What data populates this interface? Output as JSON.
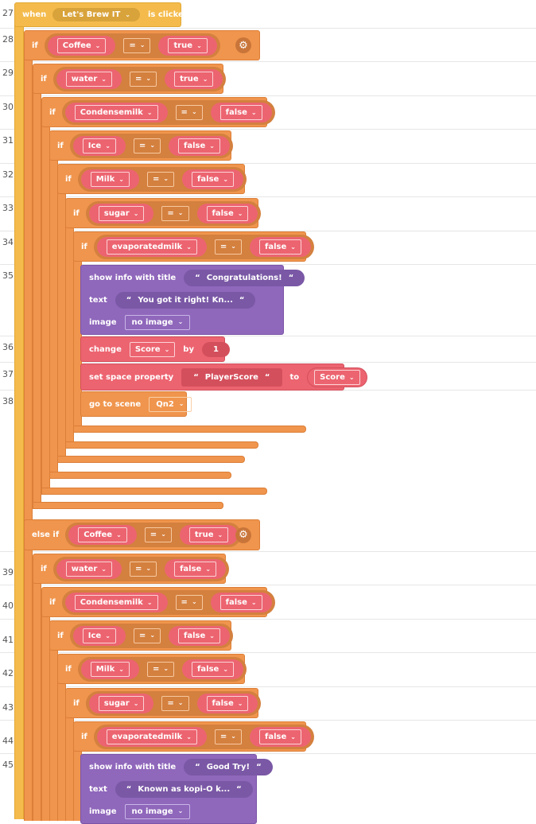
{
  "line_numbers": [
    "27",
    "28",
    "29",
    "30",
    "31",
    "32",
    "33",
    "34",
    "35",
    "36",
    "37",
    "38",
    "39",
    "40",
    "41",
    "42",
    "43",
    "44",
    "45"
  ],
  "event": {
    "when": "when",
    "target": "Let's Brew IT",
    "clicked": "is clicked"
  },
  "icons": {
    "gear": "gear-icon",
    "chevron": "chevron-down-icon"
  },
  "colors": {
    "event": "#f4bb4c",
    "control": "#f0954d",
    "condition": "#ec6470",
    "info": "#8f67bb"
  },
  "branches": [
    {
      "keyword": "if",
      "conditions": [
        {
          "keyword": "if",
          "var": "Coffee",
          "op": "=",
          "value": "true"
        },
        {
          "keyword": "if",
          "var": "water",
          "op": "=",
          "value": "true"
        },
        {
          "keyword": "if",
          "var": "Condensemilk",
          "op": "=",
          "value": "false"
        },
        {
          "keyword": "if",
          "var": "Ice",
          "op": "=",
          "value": "false"
        },
        {
          "keyword": "if",
          "var": "Milk",
          "op": "=",
          "value": "false"
        },
        {
          "keyword": "if",
          "var": "sugar",
          "op": "=",
          "value": "false"
        },
        {
          "keyword": "if",
          "var": "evaporatedmilk",
          "op": "=",
          "value": "false"
        }
      ],
      "actions": {
        "info_label": "show info with title",
        "title": "Congratulations!",
        "text_label": "text",
        "text": "You got it right! Kn...",
        "image_label": "image",
        "image": "no image",
        "change_label": "change",
        "change_var": "Score",
        "by_label": "by",
        "by_value": "1",
        "set_label": "set space property",
        "property": "PlayerScore",
        "to_label": "to",
        "to_var": "Score",
        "goto_label": "go to scene",
        "scene": "Qn2"
      }
    },
    {
      "keyword": "else if",
      "conditions": [
        {
          "keyword": "else if",
          "var": "Coffee",
          "op": "=",
          "value": "true"
        },
        {
          "keyword": "if",
          "var": "water",
          "op": "=",
          "value": "false"
        },
        {
          "keyword": "if",
          "var": "Condensemilk",
          "op": "=",
          "value": "false"
        },
        {
          "keyword": "if",
          "var": "Ice",
          "op": "=",
          "value": "false"
        },
        {
          "keyword": "if",
          "var": "Milk",
          "op": "=",
          "value": "false"
        },
        {
          "keyword": "if",
          "var": "sugar",
          "op": "=",
          "value": "false"
        },
        {
          "keyword": "if",
          "var": "evaporatedmilk",
          "op": "=",
          "value": "false"
        }
      ],
      "actions": {
        "info_label": "show info with title",
        "title": "Good Try!",
        "text_label": "text",
        "text": "Known as kopi-O k...",
        "image_label": "image",
        "image": "no image"
      }
    }
  ]
}
